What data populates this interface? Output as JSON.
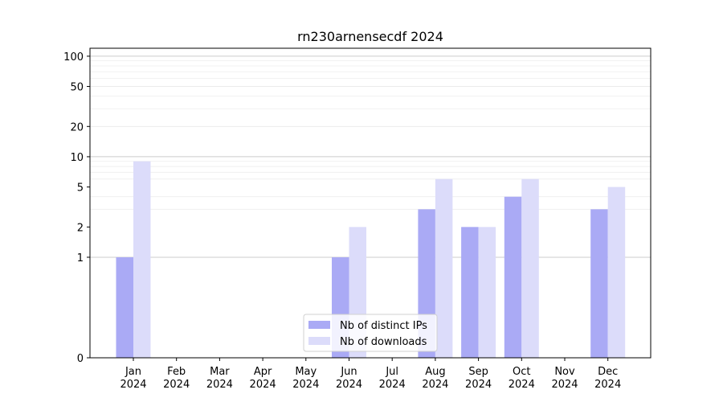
{
  "chart_data": {
    "type": "bar",
    "title": "rn230arnensecdf 2024",
    "xlabel": "",
    "ylabel": "",
    "y_scale": "symlog",
    "ylim": [
      0,
      120
    ],
    "y_ticks": [
      0,
      1,
      2,
      5,
      10,
      20,
      50,
      100
    ],
    "y_tick_labels": [
      "0",
      "1",
      "2",
      "5",
      "10",
      "20",
      "50",
      "100"
    ],
    "categories": [
      {
        "month": "Jan",
        "year": "2024"
      },
      {
        "month": "Feb",
        "year": "2024"
      },
      {
        "month": "Mar",
        "year": "2024"
      },
      {
        "month": "Apr",
        "year": "2024"
      },
      {
        "month": "May",
        "year": "2024"
      },
      {
        "month": "Jun",
        "year": "2024"
      },
      {
        "month": "Jul",
        "year": "2024"
      },
      {
        "month": "Aug",
        "year": "2024"
      },
      {
        "month": "Sep",
        "year": "2024"
      },
      {
        "month": "Oct",
        "year": "2024"
      },
      {
        "month": "Nov",
        "year": "2024"
      },
      {
        "month": "Dec",
        "year": "2024"
      }
    ],
    "series": [
      {
        "name": "Nb of distinct IPs",
        "color": "#aaaaf5",
        "values": [
          1,
          0,
          0,
          0,
          0,
          1,
          0,
          3,
          2,
          4,
          0,
          3
        ]
      },
      {
        "name": "Nb of downloads",
        "color": "#dcdcfa",
        "values": [
          9,
          0,
          0,
          0,
          0,
          2,
          0,
          6,
          2,
          6,
          0,
          5
        ]
      }
    ],
    "grid": true,
    "legend_position": "lower-center"
  }
}
